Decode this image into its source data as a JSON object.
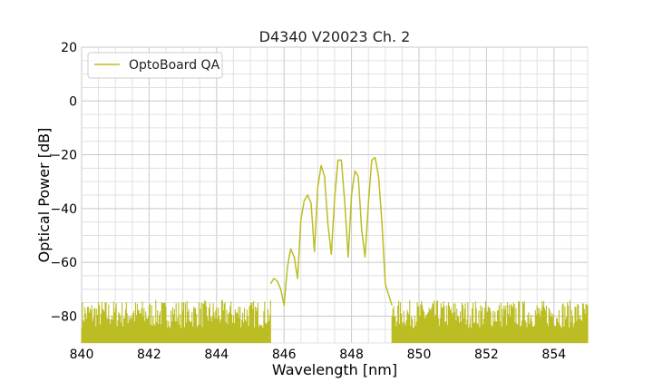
{
  "chart_data": {
    "type": "line",
    "title": "D4340 V20023 Ch. 2",
    "xlabel": "Wavelength [nm]",
    "ylabel": "Optical Power [dB]",
    "xlim": [
      840,
      855
    ],
    "ylim": [
      -90,
      20
    ],
    "xticks": [
      840,
      842,
      844,
      846,
      848,
      850,
      852,
      854
    ],
    "xtick_labels": [
      "840",
      "842",
      "844",
      "846",
      "848",
      "850",
      "852",
      "854"
    ],
    "yticks": [
      20,
      0,
      -20,
      -40,
      -60,
      -80
    ],
    "ytick_labels": [
      "20",
      "0",
      "−20",
      "−40",
      "−60",
      "−80"
    ],
    "x_minor_step": 0.5,
    "y_minor_step": 5,
    "grid": true,
    "legend_position": "top-left",
    "line_color": "#bcbd22",
    "series": [
      {
        "name": "OptoBoard QA",
        "noise_floor": {
          "min": -90,
          "max": -74,
          "x_ranges": [
            [
              840.0,
              845.6
            ],
            [
              849.2,
              855.0
            ]
          ]
        },
        "x": [
          845.6,
          845.7,
          845.8,
          845.9,
          846.0,
          846.1,
          846.15,
          846.2,
          846.3,
          846.4,
          846.5,
          846.6,
          846.7,
          846.8,
          846.9,
          847.0,
          847.1,
          847.2,
          847.3,
          847.4,
          847.5,
          847.6,
          847.7,
          847.8,
          847.9,
          848.0,
          848.1,
          848.2,
          848.3,
          848.4,
          848.5,
          848.6,
          848.7,
          848.8,
          848.9,
          849.0,
          849.1,
          849.2
        ],
        "y": [
          -68,
          -66,
          -67,
          -70,
          -76,
          -62,
          -58,
          -55,
          -58,
          -66,
          -44,
          -37,
          -35,
          -38,
          -56,
          -32,
          -24,
          -28,
          -46,
          -57,
          -36,
          -22,
          -22,
          -38,
          -58,
          -35,
          -26,
          -28,
          -48,
          -58,
          -38,
          -22,
          -21,
          -28,
          -45,
          -68,
          -72,
          -76
        ]
      }
    ]
  }
}
